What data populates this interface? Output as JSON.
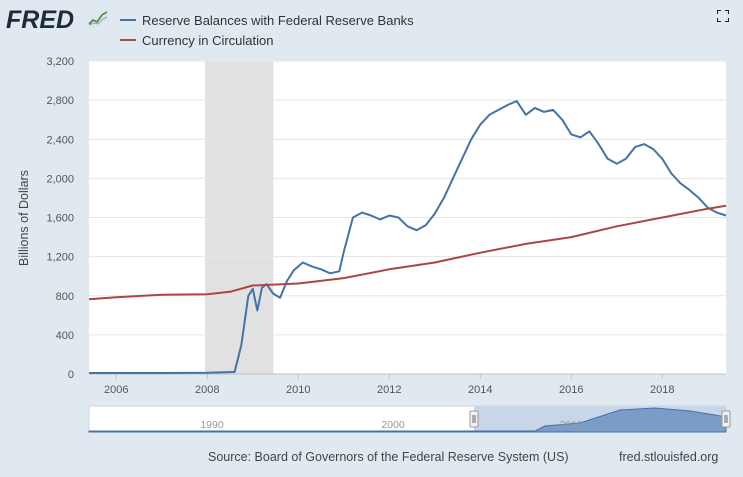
{
  "header": {
    "logo_text": "FRED",
    "expand_icon": "fullscreen-icon"
  },
  "colors": {
    "reserve": "#4572a7",
    "currency": "#aa4643",
    "recession": "#e1e1e1",
    "grid": "#e6e6e6"
  },
  "chart_data": {
    "type": "line",
    "title": "",
    "xlabel": "",
    "ylabel": "Billions of Dollars",
    "xlim": [
      2005.4,
      2019.4
    ],
    "ylim": [
      0,
      3200
    ],
    "y_ticks": [
      "0",
      "400",
      "800",
      "1,200",
      "1,600",
      "2,000",
      "2,400",
      "2,800",
      "3,200"
    ],
    "y_tick_values": [
      0,
      400,
      800,
      1200,
      1600,
      2000,
      2400,
      2800,
      3200
    ],
    "x_ticks": [
      "2006",
      "2008",
      "2010",
      "2012",
      "2014",
      "2016",
      "2018"
    ],
    "x_tick_values": [
      2006,
      2008,
      2010,
      2012,
      2014,
      2016,
      2018
    ],
    "recession": [
      2007.95,
      2009.45
    ],
    "grid": true,
    "legend_position": "top-left",
    "series": [
      {
        "name": "Reserve Balances with Federal Reserve Banks",
        "x": [
          2005.4,
          2006.0,
          2007.0,
          2008.0,
          2008.6,
          2008.75,
          2008.9,
          2009.0,
          2009.1,
          2009.2,
          2009.3,
          2009.45,
          2009.6,
          2009.75,
          2009.9,
          2010.0,
          2010.1,
          2010.3,
          2010.5,
          2010.7,
          2010.9,
          2011.0,
          2011.2,
          2011.4,
          2011.6,
          2011.8,
          2012.0,
          2012.2,
          2012.4,
          2012.6,
          2012.8,
          2013.0,
          2013.2,
          2013.5,
          2013.8,
          2014.0,
          2014.2,
          2014.4,
          2014.6,
          2014.8,
          2015.0,
          2015.2,
          2015.4,
          2015.6,
          2015.8,
          2016.0,
          2016.2,
          2016.4,
          2016.6,
          2016.8,
          2017.0,
          2017.2,
          2017.4,
          2017.6,
          2017.8,
          2018.0,
          2018.2,
          2018.4,
          2018.6,
          2018.8,
          2019.0,
          2019.2,
          2019.4
        ],
        "y": [
          10,
          10,
          10,
          12,
          20,
          300,
          800,
          870,
          650,
          880,
          920,
          820,
          780,
          950,
          1060,
          1100,
          1140,
          1100,
          1070,
          1030,
          1050,
          1250,
          1600,
          1650,
          1620,
          1580,
          1620,
          1600,
          1510,
          1470,
          1520,
          1640,
          1800,
          2100,
          2400,
          2550,
          2650,
          2700,
          2750,
          2790,
          2650,
          2720,
          2680,
          2700,
          2600,
          2450,
          2420,
          2480,
          2350,
          2200,
          2150,
          2200,
          2320,
          2350,
          2300,
          2200,
          2050,
          1950,
          1880,
          1800,
          1700,
          1650,
          1620
        ]
      },
      {
        "name": "Currency in Circulation",
        "x": [
          2005.4,
          2006.0,
          2007.0,
          2008.0,
          2008.5,
          2009.0,
          2010.0,
          2011.0,
          2012.0,
          2013.0,
          2014.0,
          2015.0,
          2016.0,
          2017.0,
          2018.0,
          2019.0,
          2019.4
        ],
        "y": [
          765,
          785,
          810,
          815,
          840,
          905,
          925,
          980,
          1070,
          1140,
          1240,
          1330,
          1400,
          1510,
          1600,
          1690,
          1720
        ]
      }
    ]
  },
  "navigator": {
    "labels": [
      "1990",
      "2000",
      "2010"
    ]
  },
  "footer": {
    "source": "Source: Board of Governors of the Federal Reserve System (US)",
    "url": "fred.stlouisfed.org"
  }
}
